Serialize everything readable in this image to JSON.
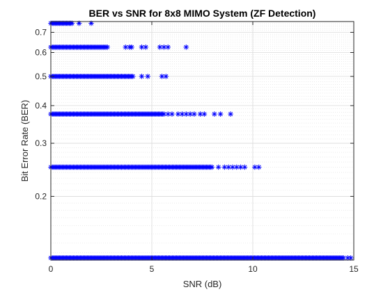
{
  "chart_data": {
    "type": "scatter",
    "title": "BER vs SNR for 8x8 MIMO System (ZF Detection)",
    "xlabel": "SNR (dB)",
    "ylabel": "Bit Error Rate (BER)",
    "xlim": [
      0,
      15
    ],
    "ylim": [
      0.123,
      0.76
    ],
    "yscale": "log",
    "x_ticks": [
      0,
      5,
      10,
      15
    ],
    "x_tick_labels": [
      "0",
      "5",
      "10",
      "15"
    ],
    "y_ticks": [
      0.2,
      0.3,
      0.4,
      0.5,
      0.6,
      0.7
    ],
    "y_tick_labels": [
      "0.2",
      "0.3",
      "0.4",
      "0.5",
      "0.6",
      "0.7"
    ],
    "grid": true,
    "minor_grid": true,
    "marker": "asterisk",
    "marker_color": "#0000ff",
    "series": [
      {
        "marker_groups": [
          {
            "y": 0.75,
            "x_ranges": [
              [
                0.0,
                1.1
              ]
            ],
            "x_points": [
              1.4,
              2.0
            ]
          },
          {
            "y": 0.625,
            "x_ranges": [
              [
                0.0,
                2.8
              ]
            ],
            "x_points": [
              3.7,
              3.9,
              4.0,
              4.5,
              4.7,
              5.4,
              5.6,
              5.8,
              6.7
            ]
          },
          {
            "y": 0.5,
            "x_ranges": [
              [
                0.0,
                4.1
              ]
            ],
            "x_points": [
              4.5,
              4.8,
              5.5,
              5.7
            ]
          },
          {
            "y": 0.375,
            "x_ranges": [
              [
                0.0,
                5.6
              ]
            ],
            "x_points": [
              5.8,
              6.0,
              6.3,
              6.5,
              6.7,
              6.9,
              7.1,
              7.4,
              7.6,
              8.1,
              8.4,
              8.9
            ]
          },
          {
            "y": 0.25,
            "x_ranges": [
              [
                0.0,
                8.0
              ]
            ],
            "x_points": [
              8.3,
              8.6,
              8.8,
              9.0,
              9.2,
              9.4,
              9.6,
              10.1,
              10.3
            ]
          },
          {
            "y": 0.125,
            "x_ranges": [
              [
                0.0,
                14.5
              ]
            ],
            "x_points": [
              14.7,
              14.85
            ]
          }
        ]
      }
    ]
  }
}
